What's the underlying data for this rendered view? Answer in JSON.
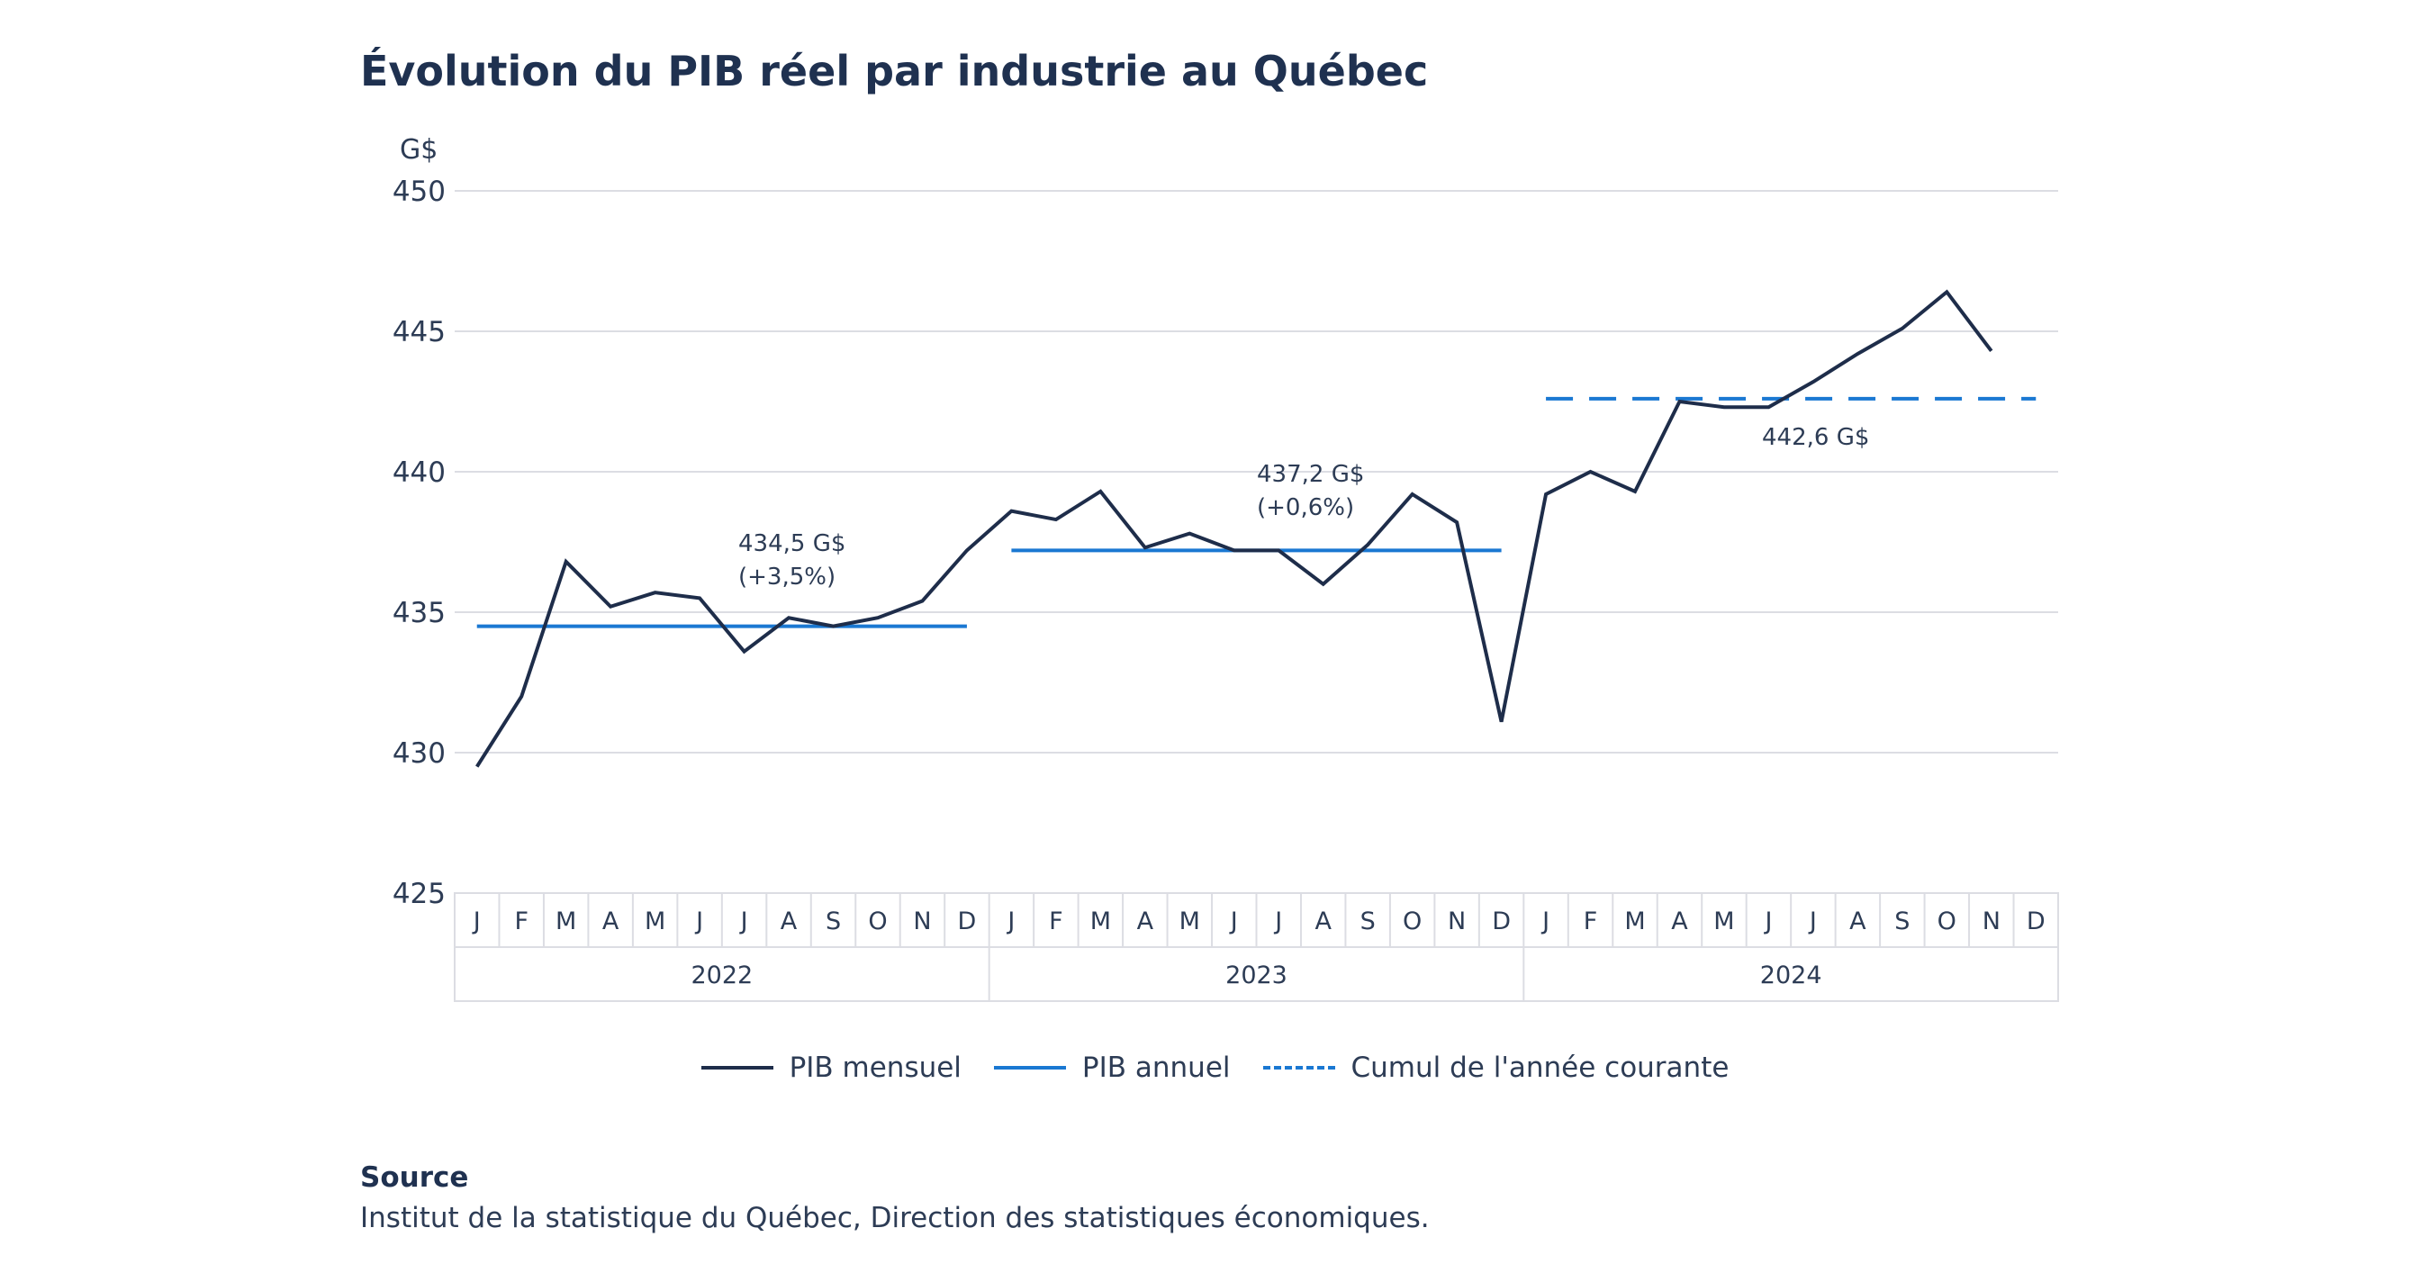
{
  "title": "Évolution du PIB réel par industrie au Québec",
  "chart_data": {
    "type": "line",
    "title": "Évolution du PIB réel par industrie au Québec",
    "ylabel": "G$",
    "ylim": [
      425,
      450
    ],
    "yticks": [
      450,
      445,
      440,
      435,
      430,
      425
    ],
    "grid": true,
    "month_labels": [
      "J",
      "F",
      "M",
      "A",
      "M",
      "J",
      "J",
      "A",
      "S",
      "O",
      "N",
      "D"
    ],
    "years": [
      "2022",
      "2023",
      "2024"
    ],
    "series": [
      {
        "name": "PIB mensuel",
        "color": "#1e2d4a",
        "style": "solid",
        "values": [
          429.5,
          432.0,
          436.8,
          435.2,
          435.7,
          435.5,
          433.6,
          434.8,
          434.5,
          434.8,
          435.4,
          437.2,
          438.6,
          438.3,
          439.3,
          437.3,
          437.8,
          437.2,
          437.2,
          436.0,
          437.4,
          439.2,
          438.2,
          431.1,
          439.2,
          440.0,
          439.3,
          442.5,
          442.3,
          442.3,
          443.2,
          444.2,
          445.1,
          446.4,
          444.3
        ]
      },
      {
        "name": "PIB annuel",
        "color": "#1a78d2",
        "style": "solid",
        "segments": [
          {
            "year": "2022",
            "value": 434.5
          },
          {
            "year": "2023",
            "value": 437.2
          }
        ]
      },
      {
        "name": "Cumul de l'année courante",
        "color": "#1a78d2",
        "style": "dashed",
        "segments": [
          {
            "year": "2024",
            "value": 442.6
          }
        ]
      }
    ],
    "annotations": [
      {
        "year": "2022",
        "lines": [
          "434,5 G$",
          "(+3,5%)"
        ]
      },
      {
        "year": "2023",
        "lines": [
          "437,2 G$",
          "(+0,6%)"
        ]
      },
      {
        "year": "2024",
        "lines": [
          "442,6 G$"
        ]
      }
    ],
    "legend_position": "bottom"
  },
  "source": {
    "label": "Source",
    "text": "Institut de la statistique du Québec, Direction des statistiques économiques."
  }
}
